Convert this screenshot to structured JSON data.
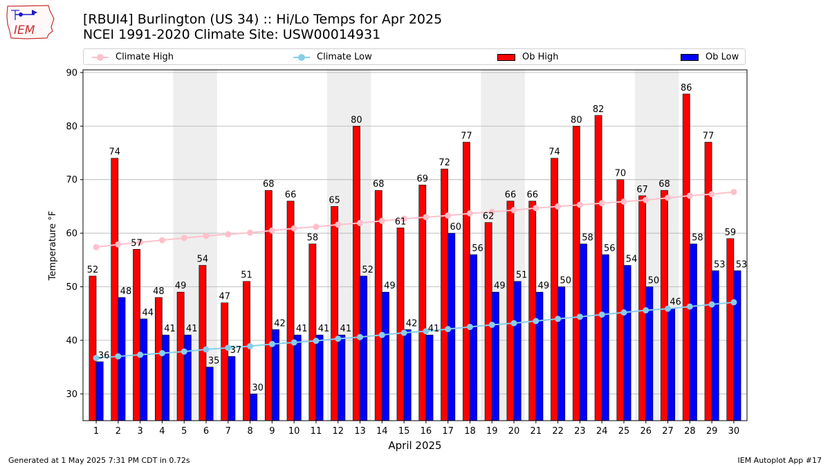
{
  "header": {
    "logo_text": "IEM",
    "title_line1": "[RBUI4] Burlington (US 34) :: Hi/Lo Temps for Apr 2025",
    "title_line2": "NCEI 1991-2020 Climate Site: USW00014931"
  },
  "legend": {
    "climate_high": "Climate High",
    "climate_low": "Climate Low",
    "ob_high": "Ob High",
    "ob_low": "Ob Low"
  },
  "colors": {
    "ob_high": "#ff0000",
    "ob_low": "#0000ff",
    "climate_high": "#ffc0cb",
    "climate_low": "#87ceeb",
    "weekend_shade": "#eeeeee",
    "grid": "#b0b0b0"
  },
  "footer": {
    "generated": "Generated at 1 May 2025 7:31 PM CDT in 0.72s",
    "app": "IEM Autoplot App #17"
  },
  "chart_data": {
    "type": "bar",
    "xlabel": "April 2025",
    "ylabel": "Temperature °F",
    "ylim": [
      25,
      90.5
    ],
    "yticks": [
      30,
      40,
      50,
      60,
      70,
      80,
      90
    ],
    "grid": "horizontal",
    "legend_position": "top",
    "categories": [
      "1",
      "2",
      "3",
      "4",
      "5",
      "6",
      "7",
      "8",
      "9",
      "10",
      "11",
      "12",
      "13",
      "14",
      "15",
      "16",
      "17",
      "18",
      "19",
      "20",
      "21",
      "22",
      "23",
      "24",
      "25",
      "26",
      "27",
      "28",
      "29",
      "30"
    ],
    "shaded_day_ranges": [
      [
        5,
        6
      ],
      [
        12,
        13
      ],
      [
        19,
        20
      ],
      [
        26,
        27
      ]
    ],
    "series": [
      {
        "name": "Ob High",
        "kind": "bar",
        "values": [
          52,
          74,
          57,
          48,
          49,
          54,
          47,
          51,
          68,
          66,
          58,
          65,
          80,
          68,
          61,
          69,
          72,
          77,
          62,
          66,
          66,
          74,
          80,
          82,
          70,
          67,
          68,
          86,
          77,
          59
        ]
      },
      {
        "name": "Ob Low",
        "kind": "bar",
        "values": [
          36,
          48,
          44,
          41,
          41,
          35,
          37,
          30,
          42,
          41,
          41,
          41,
          52,
          49,
          42,
          41,
          60,
          56,
          49,
          51,
          49,
          50,
          58,
          56,
          54,
          50,
          46,
          58,
          53,
          53
        ]
      },
      {
        "name": "Climate High",
        "kind": "line",
        "values": [
          57.4,
          57.9,
          58.3,
          58.7,
          59.1,
          59.5,
          59.8,
          60.1,
          60.5,
          60.9,
          61.2,
          61.6,
          61.9,
          62.3,
          62.7,
          63.0,
          63.3,
          63.7,
          64.0,
          64.3,
          64.7,
          65.0,
          65.3,
          65.6,
          65.9,
          66.2,
          66.6,
          67.0,
          67.3,
          67.7
        ]
      },
      {
        "name": "Climate Low",
        "kind": "line",
        "values": [
          36.7,
          37.0,
          37.3,
          37.6,
          37.9,
          38.3,
          38.6,
          38.9,
          39.3,
          39.6,
          39.9,
          40.3,
          40.6,
          41.0,
          41.4,
          41.7,
          42.1,
          42.5,
          42.9,
          43.2,
          43.6,
          44.0,
          44.4,
          44.8,
          45.2,
          45.6,
          45.9,
          46.3,
          46.7,
          47.1
        ]
      }
    ]
  }
}
